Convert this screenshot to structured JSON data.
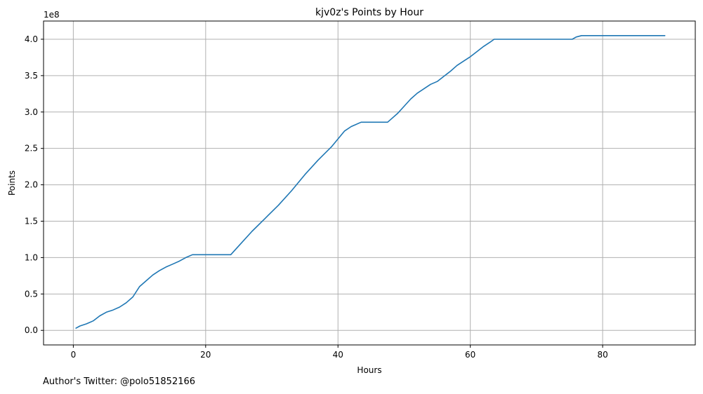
{
  "chart_data": {
    "type": "line",
    "title": "kjv0z's Points by Hour",
    "xlabel": "Hours",
    "ylabel": "Points",
    "y_offset_label": "1e8",
    "xlim": [
      -4.5,
      94
    ],
    "ylim": [
      -0.2,
      4.25
    ],
    "x_ticks": [
      0,
      20,
      40,
      60,
      80
    ],
    "x_tick_labels": [
      "0",
      "20",
      "40",
      "60",
      "80"
    ],
    "y_ticks": [
      0.0,
      0.5,
      1.0,
      1.5,
      2.0,
      2.5,
      3.0,
      3.5,
      4.0
    ],
    "y_tick_labels": [
      "0.0",
      "0.5",
      "1.0",
      "1.5",
      "2.0",
      "2.5",
      "3.0",
      "3.5",
      "4.0"
    ],
    "grid": true,
    "line_color": "#1f77b4",
    "series": [
      {
        "x": [
          0.4,
          1,
          2,
          3,
          4,
          5,
          6,
          7,
          8,
          9,
          10,
          11,
          12,
          13,
          14,
          15,
          16,
          17,
          18,
          20,
          22,
          23.8,
          25,
          27,
          29,
          31,
          33,
          35,
          37,
          39,
          41,
          42,
          43.5,
          45,
          47.5,
          48,
          49,
          50,
          51,
          52,
          53,
          54,
          55,
          56,
          57,
          58,
          59,
          60,
          61,
          62,
          63,
          63.6,
          65,
          70,
          75.4,
          76,
          76.8,
          80,
          85,
          89.4
        ],
        "y": [
          0.03,
          0.06,
          0.09,
          0.13,
          0.2,
          0.25,
          0.28,
          0.32,
          0.38,
          0.46,
          0.6,
          0.68,
          0.76,
          0.82,
          0.87,
          0.91,
          0.95,
          1.0,
          1.04,
          1.04,
          1.04,
          1.04,
          1.16,
          1.36,
          1.54,
          1.72,
          1.92,
          2.14,
          2.34,
          2.52,
          2.74,
          2.8,
          2.86,
          2.86,
          2.86,
          2.9,
          2.98,
          3.08,
          3.18,
          3.26,
          3.32,
          3.38,
          3.42,
          3.49,
          3.56,
          3.64,
          3.7,
          3.76,
          3.83,
          3.9,
          3.96,
          4.0,
          4.0,
          4.0,
          4.0,
          4.03,
          4.05,
          4.05,
          4.05,
          4.05
        ]
      }
    ]
  },
  "footer": {
    "author_text": "Author's Twitter: @polo51852166"
  }
}
